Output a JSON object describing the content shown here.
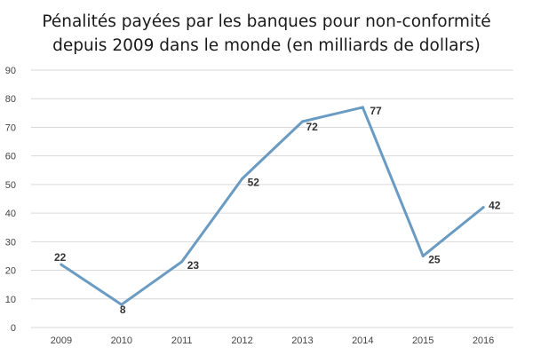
{
  "chart_data": {
    "type": "line",
    "title_lines": [
      "Pénalités payées par les banques pour non-conformité",
      "depuis 2009 dans le monde (en milliards de dollars)"
    ],
    "xlabel": "",
    "ylabel": "",
    "categories": [
      "2009",
      "2010",
      "2011",
      "2012",
      "2013",
      "2014",
      "2015",
      "2016"
    ],
    "series": [
      {
        "values": [
          22,
          8,
          23,
          52,
          72,
          77,
          25,
          42
        ],
        "color": "#6a9bc3"
      }
    ],
    "data_labels": [
      "22",
      "8",
      "23",
      "52",
      "72",
      "77",
      "25",
      "42"
    ],
    "ylim": [
      0,
      90
    ],
    "yticks": [
      "0",
      "10",
      "20",
      "30",
      "40",
      "50",
      "60",
      "70",
      "80",
      "90"
    ],
    "grid": true,
    "legend": "none"
  }
}
